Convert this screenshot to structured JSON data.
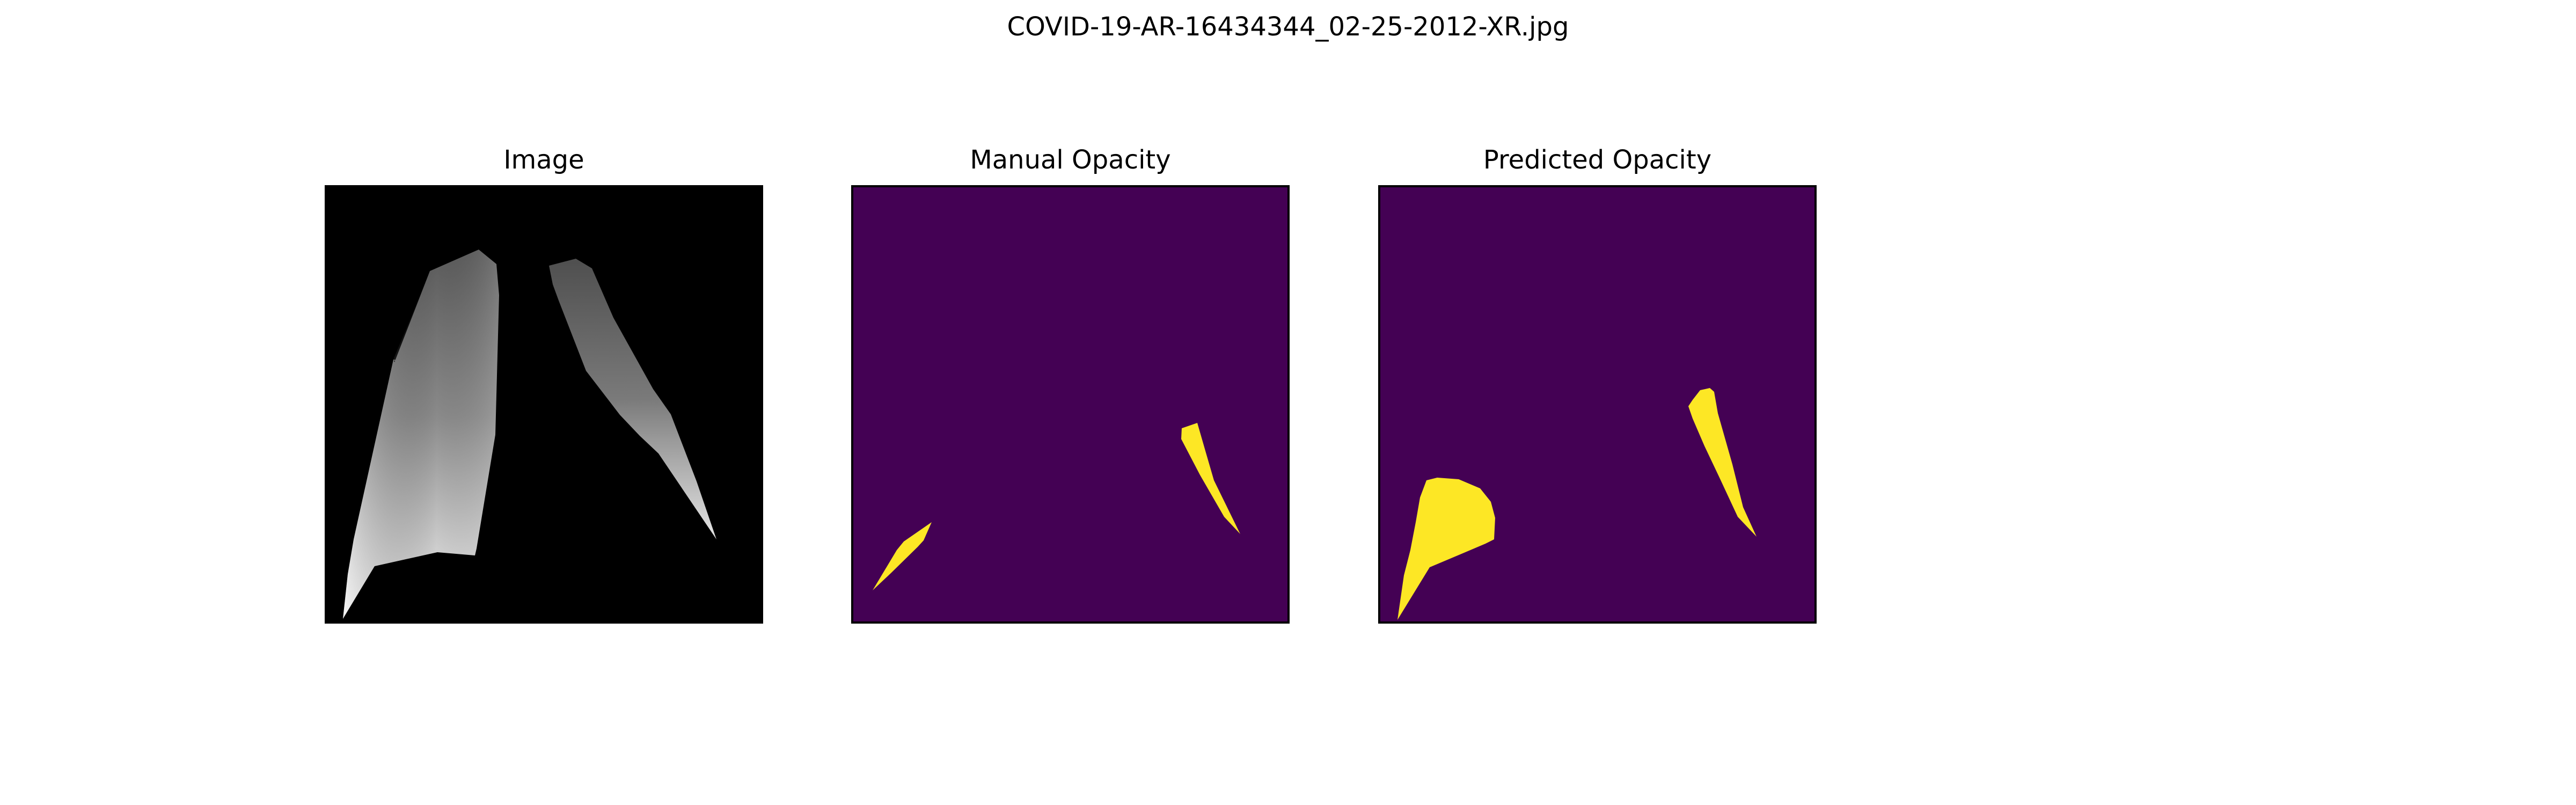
{
  "figure": {
    "title": "COVID-19-AR-16434344_02-25-2012-XR.jpg"
  },
  "panels": [
    {
      "title": "Image",
      "content": "chest x-ray with lungs segmented on black background"
    },
    {
      "title": "Manual Opacity",
      "content": "opacity mask"
    },
    {
      "title": "Predicted Opacity",
      "content": "opacity mask"
    }
  ],
  "colors": {
    "mask_background": "#440154",
    "mask_foreground": "#fde725",
    "image_background": "#000000",
    "frame": "#000000"
  }
}
